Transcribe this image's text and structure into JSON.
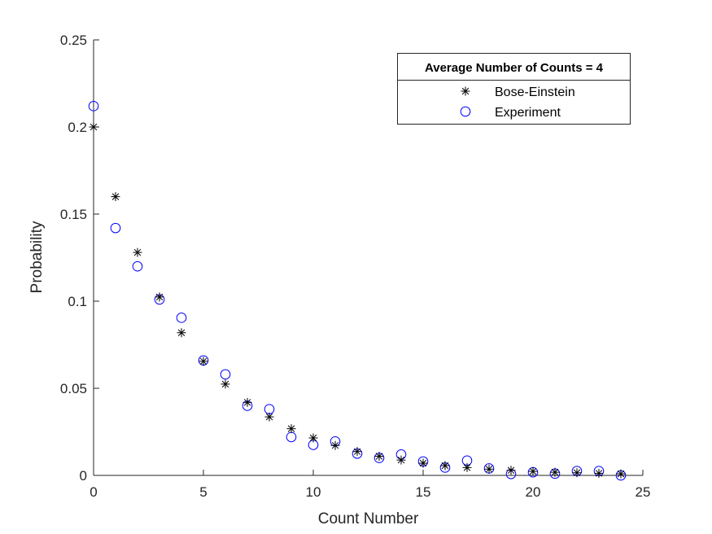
{
  "chart_data": {
    "type": "scatter",
    "xlabel": "Count Number",
    "ylabel": "Probability",
    "xlim": [
      0,
      25
    ],
    "ylim": [
      0,
      0.25
    ],
    "x_ticks": [
      "0",
      "5",
      "10",
      "15",
      "20",
      "25"
    ],
    "y_ticks": [
      "0",
      "0.05",
      "0.1",
      "0.15",
      "0.2",
      "0.25"
    ],
    "grid": false,
    "legend": {
      "title": "Average Number of Counts = 4",
      "placement": "top-right"
    },
    "series": [
      {
        "name": "Bose-Einstein",
        "marker": "asterisk",
        "color": "#000000",
        "x": [
          0,
          1,
          2,
          3,
          4,
          5,
          6,
          7,
          8,
          9,
          10,
          11,
          12,
          13,
          14,
          15,
          16,
          17,
          18,
          19,
          20,
          21,
          22,
          23,
          24
        ],
        "y": [
          0.2,
          0.16,
          0.128,
          0.1024,
          0.0819,
          0.0655,
          0.0524,
          0.0419,
          0.0336,
          0.0268,
          0.0215,
          0.0172,
          0.0137,
          0.011,
          0.0088,
          0.007,
          0.0056,
          0.0045,
          0.0036,
          0.0029,
          0.0023,
          0.0018,
          0.0015,
          0.0012,
          0.0009
        ]
      },
      {
        "name": "Experiment",
        "marker": "circle",
        "color": "#0000ff",
        "x": [
          0,
          1,
          2,
          3,
          4,
          5,
          6,
          7,
          8,
          9,
          10,
          11,
          12,
          13,
          14,
          15,
          16,
          17,
          18,
          19,
          20,
          21,
          22,
          23,
          24
        ],
        "y": [
          0.212,
          0.142,
          0.12,
          0.101,
          0.0905,
          0.066,
          0.058,
          0.04,
          0.038,
          0.022,
          0.0175,
          0.0195,
          0.0125,
          0.01,
          0.012,
          0.008,
          0.0045,
          0.0085,
          0.004,
          0.0008,
          0.0018,
          0.001,
          0.0025,
          0.0025,
          0
        ]
      }
    ]
  }
}
